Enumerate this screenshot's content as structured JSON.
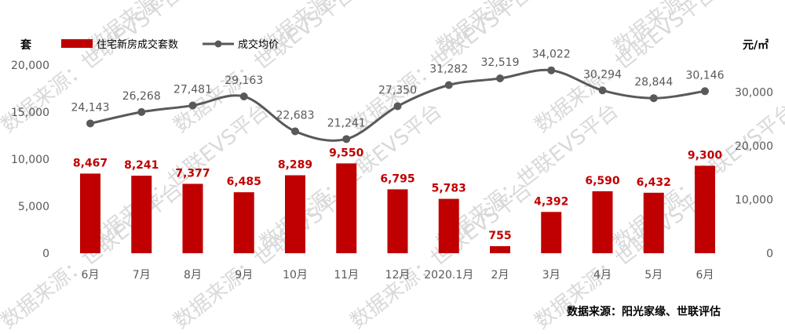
{
  "chart_data": {
    "type": "bar+line",
    "categories": [
      "6月",
      "7月",
      "8月",
      "9月",
      "10月",
      "11月",
      "12月",
      "2020.1月",
      "2月",
      "3月",
      "4月",
      "5月",
      "6月"
    ],
    "series": [
      {
        "name": "住宅新房成交套数",
        "type": "bar",
        "axis": "left",
        "color": "#c00000",
        "values": [
          8467,
          8241,
          7377,
          6485,
          8289,
          9550,
          6795,
          5783,
          755,
          4392,
          6590,
          6432,
          9300
        ],
        "labels": [
          "8,467",
          "8,241",
          "7,377",
          "6,485",
          "8,289",
          "9,550",
          "6,795",
          "5,783",
          "755",
          "4,392",
          "6,590",
          "6,432",
          "9,300"
        ]
      },
      {
        "name": "成交均价",
        "type": "line",
        "axis": "right",
        "color": "#595959",
        "values": [
          24143,
          26268,
          27481,
          29163,
          22683,
          21241,
          27350,
          31282,
          32519,
          34022,
          30294,
          28844,
          30146
        ],
        "labels": [
          "24,143",
          "26,268",
          "27,481",
          "29,163",
          "22,683",
          "21,241",
          "27,350",
          "31,282",
          "32,519",
          "34,022",
          "30,294",
          "28,844",
          "30,146"
        ]
      }
    ],
    "left_axis": {
      "unit": "套",
      "ylim": [
        0,
        20000
      ],
      "ticks": [
        0,
        5000,
        10000,
        15000,
        20000
      ],
      "tick_labels": [
        "0",
        "5,000",
        "10,000",
        "15,000",
        "20,000"
      ]
    },
    "right_axis": {
      "unit": "元/㎡",
      "ylim": [
        0,
        35000
      ],
      "ticks": [
        0,
        10000,
        20000,
        30000
      ],
      "tick_labels": [
        "0",
        "10,000",
        "20,000",
        "30,000"
      ]
    },
    "grid": false,
    "legend_position": "top-left",
    "source": "数据来源：阳光家缘、世联评估",
    "watermark": "数据来源：世联EVS平台"
  }
}
